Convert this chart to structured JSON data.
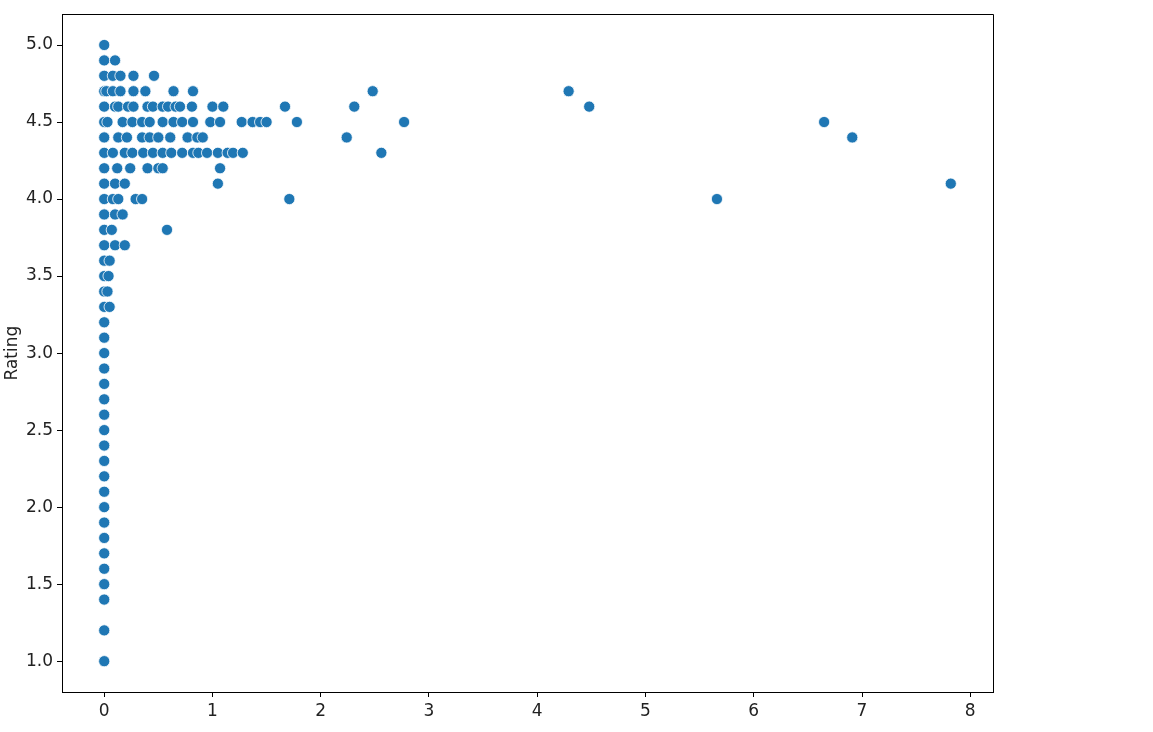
{
  "chart_data": {
    "type": "scatter",
    "ylabel": "Rating",
    "series": [
      {
        "color": "#1f77b4",
        "x": [
          0,
          0,
          0.1,
          0,
          0.08,
          0.15,
          0.27,
          0.46,
          0,
          0.02,
          0.08,
          0.15,
          0.27,
          0.38,
          0.64,
          0.82,
          2.48,
          4.29,
          0,
          0.1,
          0.13,
          0.22,
          0.27,
          0.4,
          0.45,
          0.54,
          0.59,
          0.66,
          0.7,
          0.81,
          1.0,
          1.1,
          1.67,
          2.31,
          4.48,
          0,
          0.03,
          0.17,
          0.26,
          0.35,
          0.42,
          0.54,
          0.64,
          0.72,
          0.82,
          0.98,
          1.07,
          1.27,
          1.37,
          1.44,
          1.5,
          1.78,
          2.77,
          6.65,
          0,
          0.13,
          0.21,
          0.35,
          0.42,
          0.5,
          0.61,
          0.77,
          0.86,
          0.91,
          2.24,
          6.91,
          0,
          0.08,
          0.19,
          0.26,
          0.36,
          0.45,
          0.54,
          0.62,
          0.72,
          0.82,
          0.87,
          0.95,
          1.05,
          1.14,
          1.19,
          1.28,
          2.56,
          0,
          0.12,
          0.24,
          0.4,
          0.5,
          0.54,
          1.07,
          0,
          0.1,
          0.19,
          1.05,
          7.82,
          0,
          0.08,
          0.13,
          0.29,
          0.35,
          1.71,
          5.66,
          0,
          0.1,
          0.17,
          0,
          0.07,
          0.58,
          0,
          0.1,
          0.19,
          0,
          0.05,
          0,
          0.04,
          0,
          0.03,
          0,
          0.05,
          0,
          0,
          0,
          0,
          0,
          0,
          0,
          0,
          0,
          0,
          0,
          0,
          0,
          0,
          0,
          0,
          0,
          0,
          0,
          0,
          0
        ],
        "values": [
          5.0,
          4.9,
          4.9,
          4.8,
          4.8,
          4.8,
          4.8,
          4.8,
          4.7,
          4.7,
          4.7,
          4.7,
          4.7,
          4.7,
          4.7,
          4.7,
          4.7,
          4.7,
          4.6,
          4.6,
          4.6,
          4.6,
          4.6,
          4.6,
          4.6,
          4.6,
          4.6,
          4.6,
          4.6,
          4.6,
          4.6,
          4.6,
          4.6,
          4.6,
          4.6,
          4.5,
          4.5,
          4.5,
          4.5,
          4.5,
          4.5,
          4.5,
          4.5,
          4.5,
          4.5,
          4.5,
          4.5,
          4.5,
          4.5,
          4.5,
          4.5,
          4.5,
          4.5,
          4.5,
          4.4,
          4.4,
          4.4,
          4.4,
          4.4,
          4.4,
          4.4,
          4.4,
          4.4,
          4.4,
          4.4,
          4.4,
          4.3,
          4.3,
          4.3,
          4.3,
          4.3,
          4.3,
          4.3,
          4.3,
          4.3,
          4.3,
          4.3,
          4.3,
          4.3,
          4.3,
          4.3,
          4.3,
          4.3,
          4.2,
          4.2,
          4.2,
          4.2,
          4.2,
          4.2,
          4.2,
          4.1,
          4.1,
          4.1,
          4.1,
          4.1,
          4.0,
          4.0,
          4.0,
          4.0,
          4.0,
          4.0,
          4.0,
          3.9,
          3.9,
          3.9,
          3.8,
          3.8,
          3.8,
          3.7,
          3.7,
          3.7,
          3.6,
          3.6,
          3.5,
          3.5,
          3.4,
          3.4,
          3.3,
          3.3,
          3.2,
          3.1,
          3.0,
          2.9,
          2.8,
          2.7,
          2.6,
          2.5,
          2.4,
          2.3,
          2.2,
          2.1,
          2.0,
          1.9,
          1.8,
          1.7,
          1.6,
          1.5,
          1.4,
          1.2,
          1.0
        ]
      }
    ],
    "xlim": [
      -0.39,
      8.21
    ],
    "ylim": [
      0.8,
      5.2
    ],
    "xticks": [
      0,
      1,
      2,
      3,
      4,
      5,
      6,
      7,
      8
    ],
    "yticks": [
      {
        "value": 1,
        "label": "1.0"
      },
      {
        "value": 1.5,
        "label": "1.5"
      },
      {
        "value": 2,
        "label": "2.0"
      },
      {
        "value": 2.5,
        "label": "2.5"
      },
      {
        "value": 3,
        "label": "3.0"
      },
      {
        "value": 3.5,
        "label": "3.5"
      },
      {
        "value": 4,
        "label": "4.0"
      },
      {
        "value": 4.5,
        "label": "4.5"
      },
      {
        "value": 5,
        "label": "5.0"
      }
    ],
    "marker": "circle",
    "grid": false,
    "legend": false
  }
}
